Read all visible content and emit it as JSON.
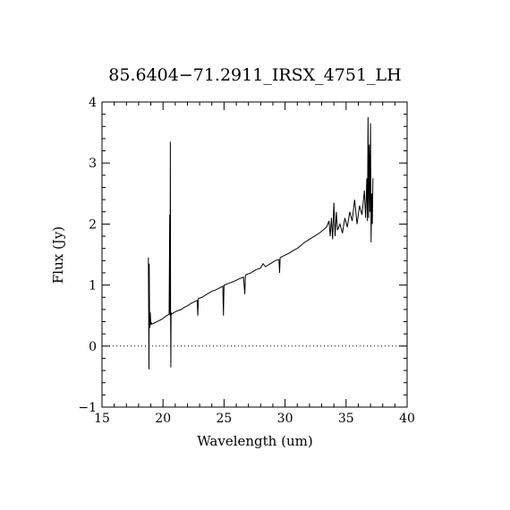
{
  "chart_data": {
    "type": "line",
    "title": "85.6404−71.2911_IRSX_4751_LH",
    "xlabel": "Wavelength (um)",
    "ylabel": "Flux (Jy)",
    "xlim": [
      15,
      40
    ],
    "ylim": [
      -1,
      4
    ],
    "x_ticks": [
      15,
      20,
      25,
      30,
      35,
      40
    ],
    "x_tick_labels": [
      "15",
      "20",
      "25",
      "30",
      "35",
      "40"
    ],
    "y_ticks": [
      -1,
      0,
      1,
      2,
      3,
      4
    ],
    "y_tick_labels": [
      "−1",
      "0",
      "1",
      "2",
      "3",
      "4"
    ],
    "x_minor_step": 1,
    "y_minor_step": 0.2,
    "grid": false,
    "reference_line": {
      "y": 0,
      "style": "dotted"
    },
    "series": [
      {
        "color": "#000000",
        "x": [
          18.8,
          18.85,
          18.87,
          18.9,
          18.93,
          18.96,
          19.0,
          19.05,
          19.1,
          19.2,
          19.3,
          19.5,
          19.7,
          19.9,
          20.1,
          20.3,
          20.5,
          20.55,
          20.58,
          20.6,
          20.62,
          20.64,
          20.66,
          20.7,
          20.75,
          20.9,
          21.2,
          21.5,
          21.7,
          22.0,
          22.3,
          22.6,
          22.8,
          22.85,
          22.9,
          23.2,
          23.6,
          24.0,
          24.3,
          24.6,
          24.9,
          24.95,
          25.0,
          25.4,
          25.8,
          26.2,
          26.6,
          26.7,
          26.75,
          26.8,
          27.2,
          27.6,
          28.0,
          28.2,
          28.4,
          28.8,
          29.2,
          29.5,
          29.55,
          29.6,
          29.9,
          30.3,
          30.7,
          31.0,
          31.3,
          31.6,
          32.0,
          32.4,
          32.8,
          33.1,
          33.4,
          33.6,
          33.7,
          33.8,
          33.9,
          34.0,
          34.1,
          34.2,
          34.3,
          34.5,
          34.7,
          34.9,
          35.1,
          35.3,
          35.5,
          35.7,
          35.9,
          36.1,
          36.3,
          36.5,
          36.6,
          36.7,
          36.75,
          36.8,
          36.85,
          36.9,
          36.95,
          37.0,
          37.05,
          37.1,
          37.15,
          37.2
        ],
        "y": [
          1.45,
          -0.38,
          1.35,
          0.4,
          0.3,
          0.55,
          0.35,
          0.38,
          0.36,
          0.37,
          0.38,
          0.4,
          0.42,
          0.44,
          0.47,
          0.5,
          0.52,
          2.15,
          0.5,
          3.35,
          0.55,
          -0.35,
          0.55,
          0.52,
          0.53,
          0.55,
          0.58,
          0.6,
          0.63,
          0.66,
          0.7,
          0.73,
          0.75,
          0.5,
          0.78,
          0.8,
          0.85,
          0.9,
          0.92,
          0.95,
          0.98,
          0.5,
          1.0,
          1.03,
          1.06,
          1.1,
          1.13,
          0.85,
          1.15,
          1.17,
          1.2,
          1.25,
          1.28,
          1.35,
          1.3,
          1.35,
          1.4,
          1.42,
          1.2,
          1.45,
          1.48,
          1.52,
          1.57,
          1.6,
          1.65,
          1.7,
          1.75,
          1.8,
          1.85,
          1.9,
          1.95,
          2.05,
          1.8,
          2.1,
          1.75,
          2.35,
          1.8,
          2.2,
          1.9,
          2.0,
          1.85,
          2.1,
          1.95,
          2.2,
          2.05,
          2.4,
          2.0,
          2.3,
          2.15,
          2.55,
          2.1,
          2.75,
          2.05,
          3.75,
          2.1,
          3.3,
          2.2,
          3.65,
          1.7,
          2.5,
          2.0,
          2.75
        ]
      }
    ]
  }
}
